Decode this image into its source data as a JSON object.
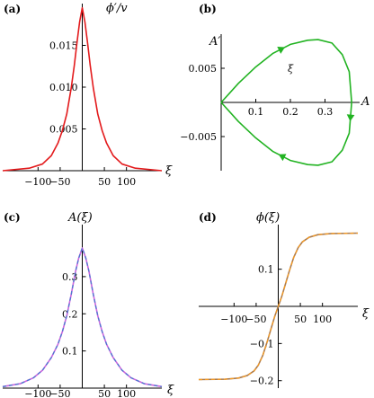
{
  "colors": {
    "red": "#e31a1c",
    "green": "#22b322",
    "magenta": "#cc66dd",
    "blue_dashed": "#4b78d0",
    "brown": "#a97b50",
    "orange_dashed": "#f59a23"
  },
  "chart_data": [
    {
      "panel": "(a)",
      "type": "line",
      "xlabel": "ξ",
      "ylabel": "ϕ′/v",
      "xlim": [
        -180,
        180
      ],
      "ylim": [
        0,
        0.02
      ],
      "xticks": [
        -100,
        -50,
        50,
        100
      ],
      "xtick_labels": [
        "−100",
        "−50",
        "50",
        "100"
      ],
      "yticks": [
        0.005,
        0.01,
        0.015
      ],
      "ytick_labels": [
        "0.005",
        "0.010",
        "0.015"
      ],
      "series": [
        {
          "style": "solid",
          "color": "#e31a1c",
          "x": [
            -180,
            -120,
            -90,
            -70,
            -55,
            -45,
            -35,
            -25,
            -18,
            -12,
            -6,
            0,
            6,
            12,
            18,
            25,
            35,
            45,
            55,
            70,
            90,
            120,
            180
          ],
          "y": [
            0.0,
            0.0003,
            0.0008,
            0.0018,
            0.0033,
            0.0048,
            0.0068,
            0.0099,
            0.0126,
            0.0153,
            0.0178,
            0.0195,
            0.0178,
            0.0153,
            0.0126,
            0.0099,
            0.0068,
            0.0048,
            0.0033,
            0.0018,
            0.0008,
            0.0003,
            0.0
          ]
        }
      ]
    },
    {
      "panel": "(b)",
      "type": "line",
      "xlabel": "A",
      "ylabel": "A′",
      "xlim": [
        0,
        0.4
      ],
      "ylim": [
        -0.01,
        0.01
      ],
      "xticks": [
        0.1,
        0.2,
        0.3
      ],
      "xtick_labels": [
        "0.1",
        "0.2",
        "0.3"
      ],
      "yticks": [
        0.005,
        -0.005
      ],
      "ytick_labels": [
        "0.005",
        "−0.005"
      ],
      "annotations": [
        {
          "text": "ξ",
          "x": 0.2,
          "y": 0.0045
        }
      ],
      "series": [
        {
          "style": "solid",
          "color": "#22b322",
          "x": [
            0.0,
            0.05,
            0.1,
            0.15,
            0.2,
            0.25,
            0.28,
            0.32,
            0.35,
            0.37,
            0.377,
            0.37,
            0.35,
            0.32,
            0.28,
            0.25,
            0.2,
            0.15,
            0.1,
            0.05,
            0.0
          ],
          "y": [
            0.0,
            0.0028,
            0.0052,
            0.0072,
            0.0085,
            0.0091,
            0.0092,
            0.0087,
            0.007,
            0.0045,
            0.0,
            -0.0045,
            -0.007,
            -0.0087,
            -0.0092,
            -0.0091,
            -0.0085,
            -0.0072,
            -0.0052,
            -0.0028,
            0.0
          ]
        }
      ]
    },
    {
      "panel": "(c)",
      "type": "line",
      "xlabel": "ξ",
      "ylabel": "A(ξ)",
      "xlim": [
        -180,
        180
      ],
      "ylim": [
        0,
        0.44
      ],
      "xticks": [
        -100,
        -50,
        50,
        100
      ],
      "xtick_labels": [
        "−100",
        "−50",
        "50",
        "100"
      ],
      "yticks": [
        0.1,
        0.2,
        0.3
      ],
      "ytick_labels": [
        "0.1",
        "0.2",
        "0.3"
      ],
      "series": [
        {
          "style": "solid",
          "color": "#cc66dd",
          "x": [
            -180,
            -140,
            -110,
            -90,
            -70,
            -55,
            -45,
            -35,
            -25,
            -15,
            -8,
            0,
            8,
            15,
            25,
            35,
            45,
            55,
            70,
            90,
            110,
            140,
            180
          ],
          "y": [
            0.004,
            0.012,
            0.028,
            0.048,
            0.082,
            0.118,
            0.152,
            0.195,
            0.252,
            0.315,
            0.35,
            0.377,
            0.35,
            0.315,
            0.252,
            0.195,
            0.152,
            0.118,
            0.082,
            0.048,
            0.028,
            0.012,
            0.004
          ]
        },
        {
          "style": "dashed",
          "color": "#4b78d0",
          "x": [
            -180,
            -140,
            -110,
            -90,
            -70,
            -55,
            -45,
            -35,
            -25,
            -15,
            -8,
            0,
            8,
            15,
            25,
            35,
            45,
            55,
            70,
            90,
            110,
            140,
            180
          ],
          "y": [
            0.004,
            0.012,
            0.028,
            0.048,
            0.082,
            0.118,
            0.152,
            0.195,
            0.252,
            0.315,
            0.35,
            0.377,
            0.35,
            0.315,
            0.252,
            0.195,
            0.152,
            0.118,
            0.082,
            0.048,
            0.028,
            0.012,
            0.004
          ]
        }
      ]
    },
    {
      "panel": "(d)",
      "type": "line",
      "xlabel": "ξ",
      "ylabel": "ϕ(ξ)",
      "xlim": [
        -180,
        180
      ],
      "ylim": [
        -0.22,
        0.22
      ],
      "xticks": [
        -100,
        -50,
        50,
        100
      ],
      "xtick_labels": [
        "−100",
        "−50",
        "50",
        "100"
      ],
      "yticks": [
        0.1,
        -0.1,
        -0.2
      ],
      "ytick_labels": [
        "0.1",
        "−0.1",
        "−0.2"
      ],
      "series": [
        {
          "style": "solid",
          "color": "#a97b50",
          "x": [
            -180,
            -120,
            -90,
            -70,
            -55,
            -45,
            -35,
            -25,
            -15,
            -8,
            0,
            8,
            15,
            25,
            35,
            45,
            55,
            70,
            90,
            120,
            180
          ],
          "y": [
            -0.197,
            -0.196,
            -0.193,
            -0.186,
            -0.174,
            -0.158,
            -0.132,
            -0.095,
            -0.055,
            -0.027,
            0.0,
            0.027,
            0.055,
            0.095,
            0.132,
            0.158,
            0.174,
            0.186,
            0.193,
            0.196,
            0.197
          ]
        },
        {
          "style": "dashed",
          "color": "#f59a23",
          "x": [
            -180,
            -120,
            -90,
            -70,
            -55,
            -45,
            -35,
            -25,
            -15,
            -8,
            0,
            8,
            15,
            25,
            35,
            45,
            55,
            70,
            90,
            120,
            180
          ],
          "y": [
            -0.197,
            -0.196,
            -0.193,
            -0.186,
            -0.174,
            -0.158,
            -0.132,
            -0.095,
            -0.055,
            -0.027,
            0.0,
            0.027,
            0.055,
            0.095,
            0.132,
            0.158,
            0.174,
            0.186,
            0.193,
            0.196,
            0.197
          ]
        }
      ]
    }
  ]
}
